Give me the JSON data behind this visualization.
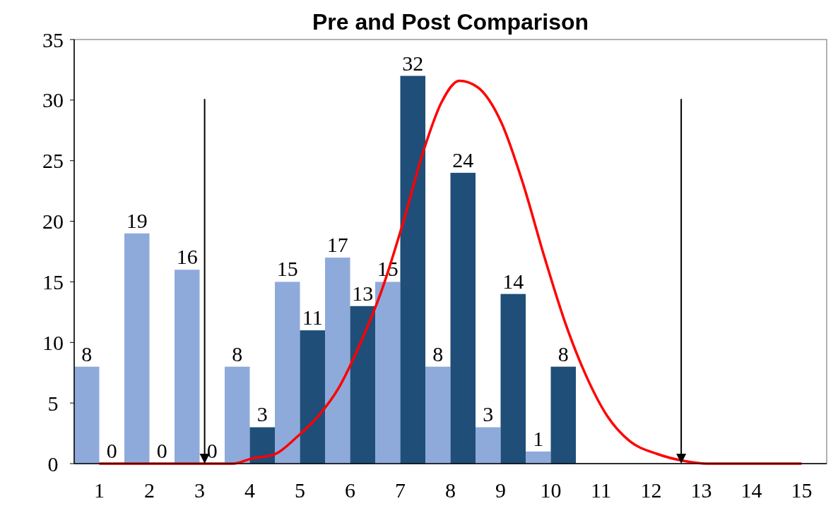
{
  "chart_data": {
    "type": "bar",
    "title": "Pre and Post Comparison",
    "x": [
      1,
      2,
      3,
      4,
      5,
      6,
      7,
      8,
      9,
      10
    ],
    "xlim": [
      0.5,
      15.5
    ],
    "xticks": [
      1,
      2,
      3,
      4,
      5,
      6,
      7,
      8,
      9,
      10,
      11,
      12,
      13,
      14,
      15
    ],
    "ylim": [
      0,
      35
    ],
    "yticks": [
      0,
      5,
      10,
      15,
      20,
      25,
      30,
      35
    ],
    "series": [
      {
        "color": "#8eaadb",
        "values": [
          8,
          19,
          16,
          8,
          15,
          17,
          15,
          8,
          3,
          1
        ],
        "value_labels": [
          "8",
          "19",
          "16",
          "8",
          "15",
          "17",
          "15",
          "8",
          "3",
          "1"
        ]
      },
      {
        "color": "#1f4e79",
        "values": [
          0,
          0,
          0,
          3,
          11,
          13,
          32,
          24,
          14,
          8
        ],
        "value_labels": [
          "0",
          "0",
          "0",
          "3",
          "11",
          "13",
          "32",
          "24",
          "14",
          "8"
        ]
      },
      {
        "type": "line",
        "color": "#ff0000",
        "x": [
          1,
          3.67,
          4.02,
          4.51,
          4.94,
          5.36,
          5.78,
          6.2,
          6.63,
          7.05,
          7.47,
          7.82,
          8.18,
          8.53,
          9.02,
          9.44,
          9.87,
          10.29,
          10.71,
          11.13,
          11.56,
          12.12,
          12.68,
          13.1,
          15
        ],
        "values": [
          0,
          0,
          0.4,
          0.8,
          2.2,
          3.9,
          6.3,
          9.9,
          14.3,
          19.8,
          25.9,
          29.8,
          31.6,
          31.1,
          28.1,
          23.2,
          17.1,
          11.6,
          7.2,
          3.9,
          1.9,
          0.8,
          0.2,
          0,
          0
        ]
      }
    ],
    "ref_lines": [
      {
        "axis": "x",
        "value": 3.1,
        "color": "#000000"
      },
      {
        "axis": "x",
        "value": 12.6,
        "color": "#000000"
      }
    ],
    "grid": false
  }
}
